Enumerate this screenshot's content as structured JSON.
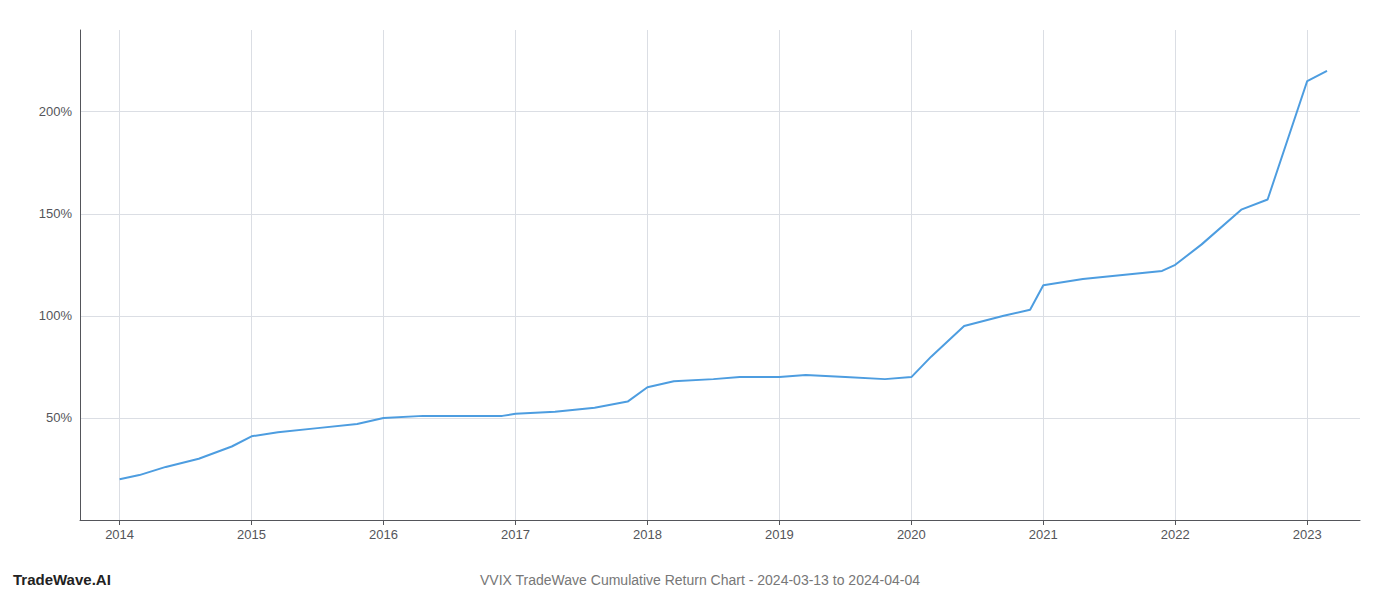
{
  "chart_data": {
    "type": "line",
    "title": "VVIX TradeWave Cumulative Return Chart - 2024-03-13 to 2024-04-04",
    "annotations": [
      "TradeWave.AI"
    ],
    "color": "#4d9de0",
    "x": [
      2014.0,
      2014.15,
      2014.35,
      2014.6,
      2014.85,
      2015.0,
      2015.2,
      2015.5,
      2015.8,
      2016.0,
      2016.3,
      2016.6,
      2016.9,
      2017.0,
      2017.3,
      2017.6,
      2017.85,
      2018.0,
      2018.2,
      2018.5,
      2018.7,
      2019.0,
      2019.2,
      2019.5,
      2019.8,
      2020.0,
      2020.15,
      2020.4,
      2020.7,
      2020.9,
      2021.0,
      2021.3,
      2021.6,
      2021.9,
      2022.0,
      2022.2,
      2022.5,
      2022.7,
      2023.0,
      2023.15
    ],
    "values": [
      20,
      22,
      26,
      30,
      36,
      41,
      43,
      45,
      47,
      50,
      51,
      51,
      51,
      52,
      53,
      55,
      58,
      65,
      68,
      69,
      70,
      70,
      71,
      70,
      69,
      70,
      80,
      95,
      100,
      103,
      115,
      118,
      120,
      122,
      125,
      135,
      152,
      157,
      215,
      220
    ],
    "xlim": [
      2013.7,
      2023.4
    ],
    "xticks": [
      2014,
      2015,
      2016,
      2017,
      2018,
      2019,
      2020,
      2021,
      2022,
      2023
    ],
    "ylim": [
      0,
      240
    ],
    "yticks": [
      {
        "value": 50,
        "label": "50%"
      },
      {
        "value": 100,
        "label": "100%"
      },
      {
        "value": 150,
        "label": "150%"
      },
      {
        "value": 200,
        "label": "200%"
      }
    ],
    "grid": true
  }
}
